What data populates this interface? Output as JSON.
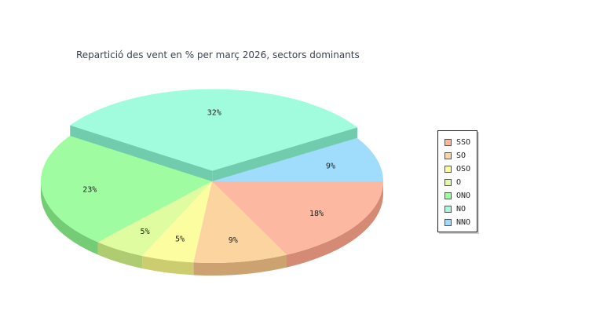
{
  "chart_data": {
    "type": "pie",
    "title": "Repartició des vent en % per març 2026, sectors dominants",
    "categories": [
      "SSO",
      "SO",
      "OSO",
      "O",
      "ONO",
      "NO",
      "NNO"
    ],
    "values": [
      18,
      9,
      5,
      5,
      23,
      32,
      9
    ],
    "labels": [
      "18%",
      "9%",
      "5%",
      "5%",
      "23%",
      "32%",
      "9%"
    ],
    "colors": [
      "#fcb8a0",
      "#fcd4a0",
      "#fcfca0",
      "#e0fca0",
      "#a0fca0",
      "#a0fcdc",
      "#a0dcfc"
    ],
    "side_colors": [
      "#d48a74",
      "#cca270",
      "#cccc70",
      "#b0cc70",
      "#74cc74",
      "#70ccac",
      "#70acd4"
    ],
    "exploded": "NO",
    "legend_position": "right"
  }
}
